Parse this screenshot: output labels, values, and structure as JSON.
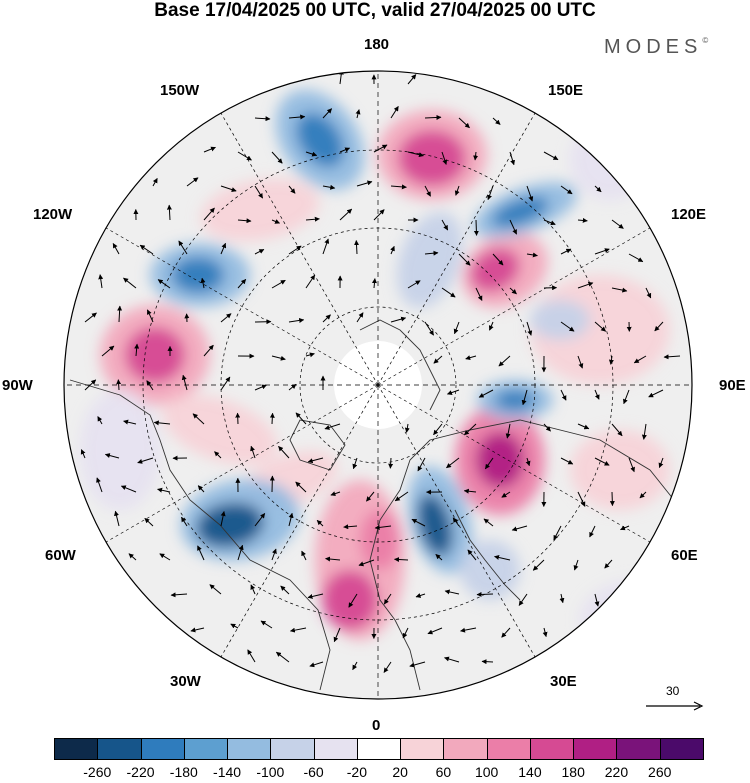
{
  "title": "Base 17/04/2025 00 UTC, valid 27/04/2025 00 UTC",
  "brand": "MODES",
  "brand_mark": "©",
  "longitude_labels": {
    "180": "180",
    "150E": "150E",
    "120E": "120E",
    "90E": "90E",
    "60E": "60E",
    "30E": "30E",
    "0": "0",
    "30W": "30W",
    "60W": "60W",
    "90W": "90W",
    "120W": "120W",
    "150W": "150W"
  },
  "reference_vector": {
    "label": "30",
    "icon": "arrow-right-icon"
  },
  "colorbar": {
    "ticks": [
      "-260",
      "-220",
      "-180",
      "-140",
      "-100",
      "-60",
      "-20",
      "20",
      "60",
      "100",
      "140",
      "180",
      "220",
      "260"
    ],
    "colors": [
      "#0d2a4a",
      "#16558a",
      "#2f7cbd",
      "#5d9fd0",
      "#94bce0",
      "#c6d2e8",
      "#e6e2f0",
      "#ffffff",
      "#f7d3d8",
      "#f2a9bd",
      "#eb7ea8",
      "#d64a93",
      "#b01f84",
      "#7a137a",
      "#4b0a6a"
    ]
  },
  "map_colors": {
    "land_outline": "#333333",
    "grid": "#000000",
    "neutral_fill": "#efefef"
  }
}
